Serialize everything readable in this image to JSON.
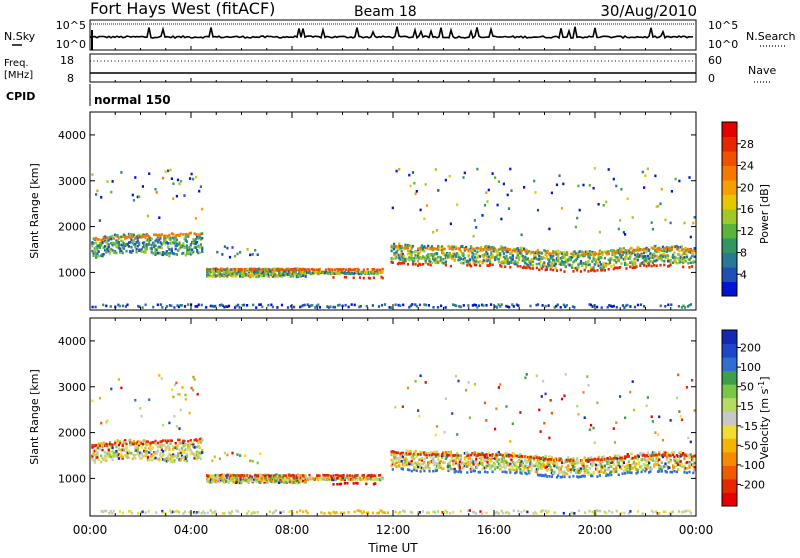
{
  "header": {
    "station": "Fort Hays West (fitACF)",
    "beam": "Beam 18",
    "date": "30/Aug/2010"
  },
  "panels": {
    "nsky_label": "N.Sky",
    "nsearch_label": "N.Search",
    "noise_ticks": [
      "10^5",
      "10^0"
    ],
    "noise_ticks_right": [
      "10^5",
      "10^0"
    ],
    "freq_label_top": "Freq.",
    "freq_label_bottom": "[MHz]",
    "freq_ticks": [
      "18",
      "8"
    ],
    "nave_label": "Nave",
    "nave_ticks": [
      "60",
      "0"
    ],
    "cpid_label": "CPID",
    "cpid_value": "normal 150"
  },
  "colors": {
    "power": [
      "#0014d2",
      "#1e50b4",
      "#287896",
      "#329664",
      "#5ab43c",
      "#a0c828",
      "#e6c800",
      "#f5a000",
      "#f57800",
      "#f05000",
      "#e62800",
      "#e60000"
    ],
    "velocity": [
      "#1428b4",
      "#1e46c8",
      "#326ed2",
      "#3ca04b",
      "#78c846",
      "#b4dc64",
      "#c8c8c8",
      "#f0dc32",
      "#f5b400",
      "#f58c00",
      "#f05a00",
      "#e62800",
      "#e60000"
    ]
  },
  "chart_data": [
    {
      "type": "heatmap",
      "ylabel": "Slant Range [km]",
      "ylim": [
        180,
        4500
      ],
      "yticks": [
        "1000",
        "2000",
        "3000",
        "4000"
      ],
      "x_range_ut_hours": [
        0,
        24
      ],
      "colorbar": {
        "label": "Power [dB]",
        "ticks": [
          "4",
          "8",
          "12",
          "16",
          "20",
          "24",
          "28"
        ],
        "range": [
          0,
          32
        ]
      }
    },
    {
      "type": "heatmap",
      "ylabel": "Slant Range [km]",
      "ylim": [
        180,
        4500
      ],
      "yticks": [
        "1000",
        "2000",
        "3000",
        "4000"
      ],
      "x_range_ut_hours": [
        0,
        24
      ],
      "xlabel": "Time UT",
      "xticks": [
        "00:00",
        "04:00",
        "08:00",
        "12:00",
        "16:00",
        "20:00",
        "00:00"
      ],
      "colorbar": {
        "label": "Velocity [m s",
        "label_sup": "-1",
        "label_end": "]",
        "ticks": [
          "200",
          "100",
          "50",
          "15",
          "-15",
          "-50",
          "-100",
          "-200"
        ]
      }
    }
  ]
}
